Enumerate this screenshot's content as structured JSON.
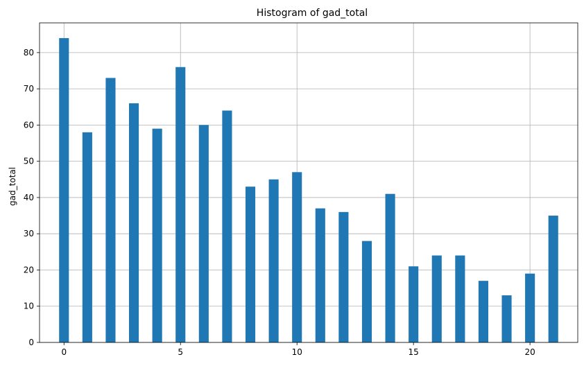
{
  "chart_data": {
    "type": "bar",
    "title": "Histogram of gad_total",
    "xlabel": "",
    "ylabel": "gad_total",
    "x": [
      0,
      1,
      2,
      3,
      4,
      5,
      6,
      7,
      8,
      9,
      10,
      11,
      12,
      13,
      14,
      15,
      16,
      17,
      18,
      19,
      20,
      21
    ],
    "values": [
      84,
      58,
      73,
      66,
      59,
      76,
      60,
      64,
      43,
      45,
      47,
      37,
      36,
      28,
      41,
      21,
      24,
      24,
      17,
      13,
      19,
      35
    ],
    "bar_width": 0.42,
    "xlim": [
      -1.05,
      22.05
    ],
    "ylim": [
      0,
      88.2
    ],
    "xticks": [
      0,
      5,
      10,
      15,
      20
    ],
    "yticks": [
      0,
      10,
      20,
      30,
      40,
      50,
      60,
      70,
      80
    ],
    "grid": true,
    "bar_color": "#1f77b4",
    "grid_color": "#b0b0b0"
  }
}
